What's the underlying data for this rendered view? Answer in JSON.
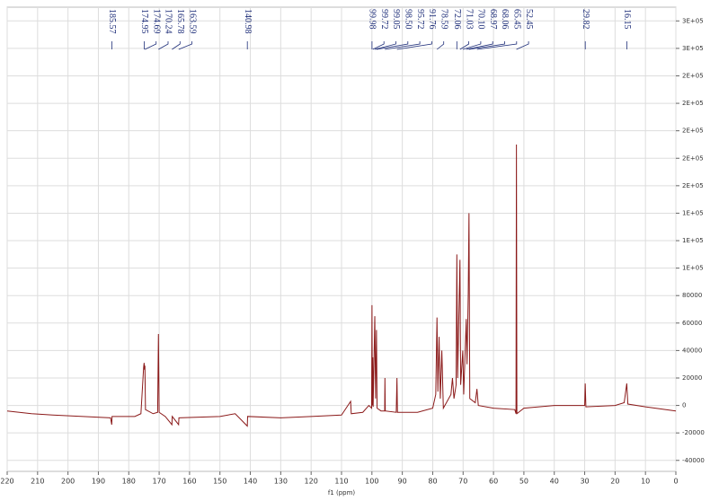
{
  "chart_data": {
    "type": "line",
    "x_label": "f1 (ppm)",
    "color": "#8b1a1a",
    "grid": true,
    "xlim": [
      220,
      0
    ],
    "xticks": [
      220,
      210,
      200,
      190,
      180,
      170,
      160,
      150,
      140,
      130,
      120,
      110,
      100,
      90,
      80,
      70,
      60,
      50,
      40,
      30,
      20,
      10,
      0
    ],
    "ylim": [
      -48000,
      290000
    ],
    "yticks": [
      -40000,
      -20000,
      0,
      20000,
      40000,
      60000,
      80000,
      {
        "value": 100000,
        "label": "1E+05"
      },
      {
        "value": 120000,
        "label": "1E+05"
      },
      {
        "value": 140000,
        "label": "1E+05"
      },
      {
        "value": 160000,
        "label": "2E+05"
      },
      {
        "value": 180000,
        "label": "2E+05"
      },
      {
        "value": 200000,
        "label": "2E+05"
      },
      {
        "value": 220000,
        "label": "2E+05"
      },
      {
        "value": 240000,
        "label": "2E+05"
      },
      {
        "value": 260000,
        "label": "3E+05"
      },
      {
        "value": 280000,
        "label": "3E+05"
      }
    ],
    "peak_labels": [
      185.57,
      174.95,
      174.69,
      170.24,
      165.78,
      163.59,
      140.98,
      99.98,
      99.72,
      99.05,
      {
        "value": 98.5,
        "label": "98.50"
      },
      95.72,
      91.76,
      78.59,
      72.06,
      71.03,
      {
        "value": 70.1,
        "label": "70.10"
      },
      68.97,
      68.06,
      65.45,
      52.45,
      29.82,
      16.15
    ],
    "x": [
      220,
      212,
      205,
      195,
      186,
      185.6,
      185.5,
      178,
      176,
      175.1,
      174.95,
      174.8,
      174.69,
      174.5,
      172,
      170.5,
      170.24,
      170.0,
      168,
      165.8,
      165.7,
      163.6,
      163.5,
      150,
      145,
      141,
      140.9,
      130,
      120,
      110,
      107,
      106.8,
      103,
      101,
      100.1,
      99.98,
      99.85,
      99.72,
      99.6,
      99.05,
      98.8,
      98.5,
      98.3,
      97,
      95.8,
      95.72,
      95.6,
      92,
      91.76,
      91.6,
      85,
      80,
      79,
      78.59,
      78.3,
      77.9,
      77.5,
      77,
      76.5,
      74,
      73.5,
      73,
      72.3,
      72.06,
      71.8,
      71.03,
      70.8,
      70.1,
      69.8,
      68.97,
      68.7,
      68.3,
      68.06,
      67.8,
      66,
      65.45,
      65,
      60,
      53,
      52.6,
      52.45,
      52.3,
      50,
      40,
      30,
      29.82,
      29.6,
      20,
      17,
      16.15,
      15.8,
      10,
      0
    ],
    "values": [
      -4000,
      -6000,
      -7000,
      -8000,
      -9000,
      -14000,
      -8000,
      -8000,
      -6000,
      28000,
      31000,
      26000,
      29000,
      -3000,
      -6000,
      -5000,
      52000,
      -5000,
      -8000,
      -14000,
      -8000,
      -14000,
      -9000,
      -8000,
      -6000,
      -15000,
      -8000,
      -9000,
      -8000,
      -7000,
      3000,
      -6000,
      -5000,
      0,
      -2000,
      73000,
      0,
      35000,
      -1000,
      65000,
      5000,
      55000,
      -2000,
      -4000,
      -4000,
      20000,
      -4000,
      -5000,
      20000,
      -5000,
      -5000,
      -2000,
      8000,
      64000,
      10000,
      50000,
      5000,
      40000,
      -2000,
      8000,
      20000,
      5000,
      15000,
      110000,
      20000,
      106000,
      15000,
      40000,
      8000,
      63000,
      30000,
      82000,
      140000,
      5000,
      2000,
      12000,
      0,
      -2000,
      -3000,
      -6000,
      190000,
      -6000,
      -2000,
      0,
      0,
      16000,
      -1000,
      0,
      2000,
      16000,
      1000,
      -1000,
      -4000
    ]
  }
}
